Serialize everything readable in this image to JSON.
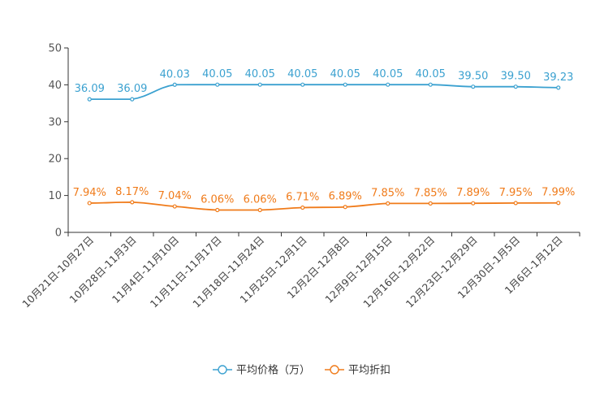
{
  "chart_data": {
    "type": "line",
    "title": "",
    "xlabel": "",
    "ylabel": "",
    "ylim": [
      0,
      50
    ],
    "yticks": [
      0,
      10,
      20,
      30,
      40,
      50
    ],
    "grid": false,
    "legend_position": "bottom-center",
    "categories": [
      "10月21日-10月27日",
      "10月28日-11月3日",
      "11月4日-11月10日",
      "11月11日-11月17日",
      "11月18日-11月24日",
      "11月25日-12月1日",
      "12月2日-12月8日",
      "12月9日-12月15日",
      "12月16日-12月22日",
      "12月23日-12月29日",
      "12月30日-1月5日",
      "1月6日-1月12日"
    ],
    "series": [
      {
        "name": "平均价格（万）",
        "color": "#3ba1d0",
        "values": [
          36.09,
          36.09,
          40.03,
          40.05,
          40.05,
          40.05,
          40.05,
          40.05,
          40.05,
          39.5,
          39.5,
          39.23
        ],
        "labels": [
          "36.09",
          "36.09",
          "40.03",
          "40.05",
          "40.05",
          "40.05",
          "40.05",
          "40.05",
          "40.05",
          "39.50",
          "39.50",
          "39.23"
        ]
      },
      {
        "name": "平均折扣",
        "color": "#f07b1a",
        "values": [
          7.94,
          8.17,
          7.04,
          6.06,
          6.06,
          6.71,
          6.89,
          7.85,
          7.85,
          7.89,
          7.95,
          7.99
        ],
        "labels": [
          "7.94%",
          "8.17%",
          "7.04%",
          "6.06%",
          "6.06%",
          "6.71%",
          "6.89%",
          "7.85%",
          "7.85%",
          "7.89%",
          "7.95%",
          "7.99%"
        ]
      }
    ]
  }
}
